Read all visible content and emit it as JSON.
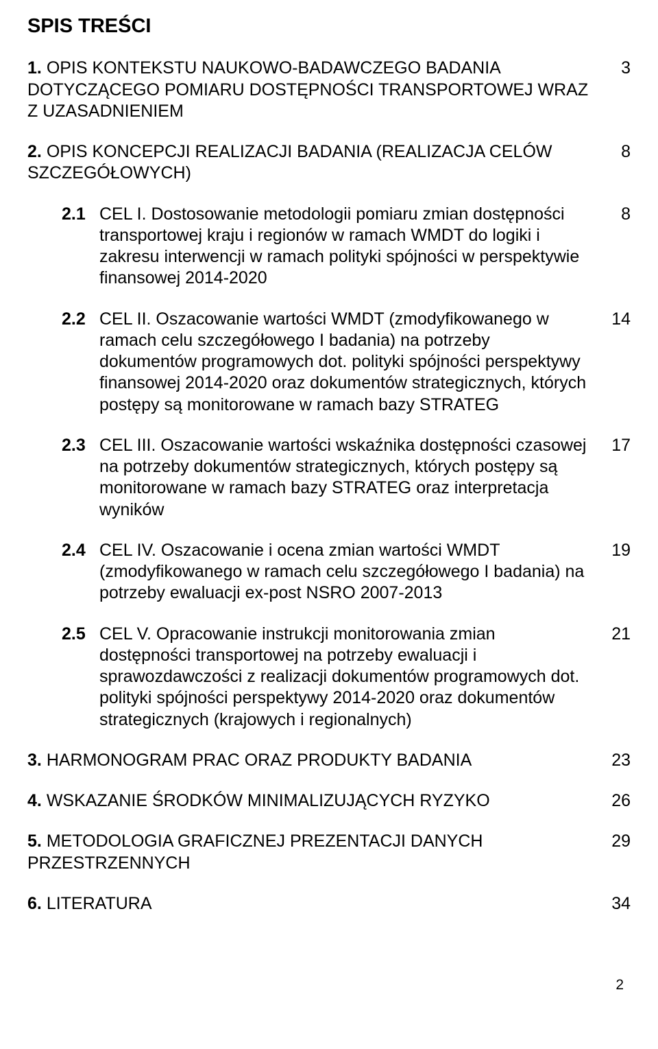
{
  "heading": "SPIS TREŚCI",
  "items": [
    {
      "num": "1.",
      "text": "OPIS KONTEKSTU NAUKOWO-BADAWCZEGO BADANIA DOTYCZĄCEGO POMIARU DOSTĘPNOŚCI TRANSPORTOWEJ WRAZ Z UZASADNIENIEM",
      "page": "3"
    },
    {
      "num": "2.",
      "text": "OPIS KONCEPCJI REALIZACJI BADANIA (REALIZACJA CELÓW SZCZEGÓŁOWYCH)",
      "page": "8"
    }
  ],
  "subitems": [
    {
      "num": "2.1",
      "text": "CEL I. Dostosowanie metodologii pomiaru zmian dostępności transportowej kraju i regionów w ramach WMDT do logiki i zakresu interwencji w ramach polityki spójności w perspektywie finansowej 2014-2020",
      "page": "8"
    },
    {
      "num": "2.2",
      "text": "CEL II. Oszacowanie wartości WMDT (zmodyfikowanego w ramach celu szczegółowego I badania) na potrzeby dokumentów programowych dot. polityki spójności perspektywy finansowej 2014-2020 oraz dokumentów strategicznych, których postępy są monitorowane w ramach bazy STRATEG",
      "page": "14"
    },
    {
      "num": "2.3",
      "text": "CEL III. Oszacowanie wartości wskaźnika dostępności czasowej na potrzeby dokumentów strategicznych, których postępy są monitorowane w ramach bazy STRATEG oraz interpretacja wyników",
      "page": "17"
    },
    {
      "num": "2.4",
      "text": "CEL IV. Oszacowanie i ocena zmian wartości WMDT (zmodyfikowanego w ramach celu szczegółowego I badania) na potrzeby ewaluacji ex-post NSRO 2007-2013",
      "page": "19"
    },
    {
      "num": "2.5",
      "text": "CEL V. Opracowanie instrukcji monitorowania zmian dostępności transportowej na potrzeby ewaluacji i sprawozdawczości z realizacji dokumentów programowych dot. polityki spójności perspektywy 2014-2020 oraz dokumentów strategicznych (krajowych i regionalnych)",
      "page": "21"
    }
  ],
  "items2": [
    {
      "num": "3.",
      "text": "HARMONOGRAM PRAC ORAZ PRODUKTY BADANIA",
      "page": "23"
    },
    {
      "num": "4.",
      "text": "WSKAZANIE ŚRODKÓW MINIMALIZUJĄCYCH RYZYKO",
      "page": "26"
    },
    {
      "num": "5.",
      "text": "METODOLOGIA GRAFICZNEJ PREZENTACJI DANYCH PRZESTRZENNYCH",
      "page": "29"
    },
    {
      "num": "6.",
      "text": "LITERATURA",
      "page": "34"
    }
  ],
  "footer": "2"
}
